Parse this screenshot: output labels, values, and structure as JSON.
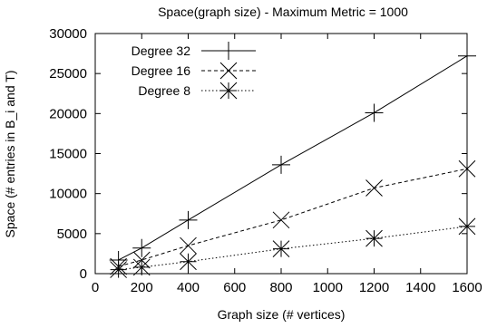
{
  "chart_data": {
    "type": "line",
    "title": "Space(graph size) - Maximum Metric = 1000",
    "xlabel": "Graph size (# vertices)",
    "ylabel": "Space (# entries in B_i and T)",
    "xlim": [
      0,
      1600
    ],
    "ylim": [
      0,
      30000
    ],
    "xticks": [
      0,
      200,
      400,
      600,
      800,
      1000,
      1200,
      1400,
      1600
    ],
    "yticks": [
      0,
      5000,
      10000,
      15000,
      20000,
      25000,
      30000
    ],
    "grid": false,
    "legend_position": "top-left",
    "series": [
      {
        "name": "Degree 32",
        "marker": "plus",
        "line_style": "solid",
        "x": [
          100,
          200,
          400,
          800,
          1200,
          1600
        ],
        "y": [
          1700,
          3200,
          6700,
          13600,
          20100,
          27200
        ]
      },
      {
        "name": "Degree 16",
        "marker": "cross",
        "line_style": "dashed",
        "x": [
          100,
          200,
          400,
          800,
          1200,
          1600
        ],
        "y": [
          900,
          1700,
          3500,
          6700,
          10700,
          13100
        ]
      },
      {
        "name": "Degree 8",
        "marker": "star",
        "line_style": "dotted",
        "x": [
          100,
          200,
          400,
          800,
          1200,
          1600
        ],
        "y": [
          500,
          800,
          1500,
          3100,
          4400,
          5900
        ]
      }
    ]
  }
}
